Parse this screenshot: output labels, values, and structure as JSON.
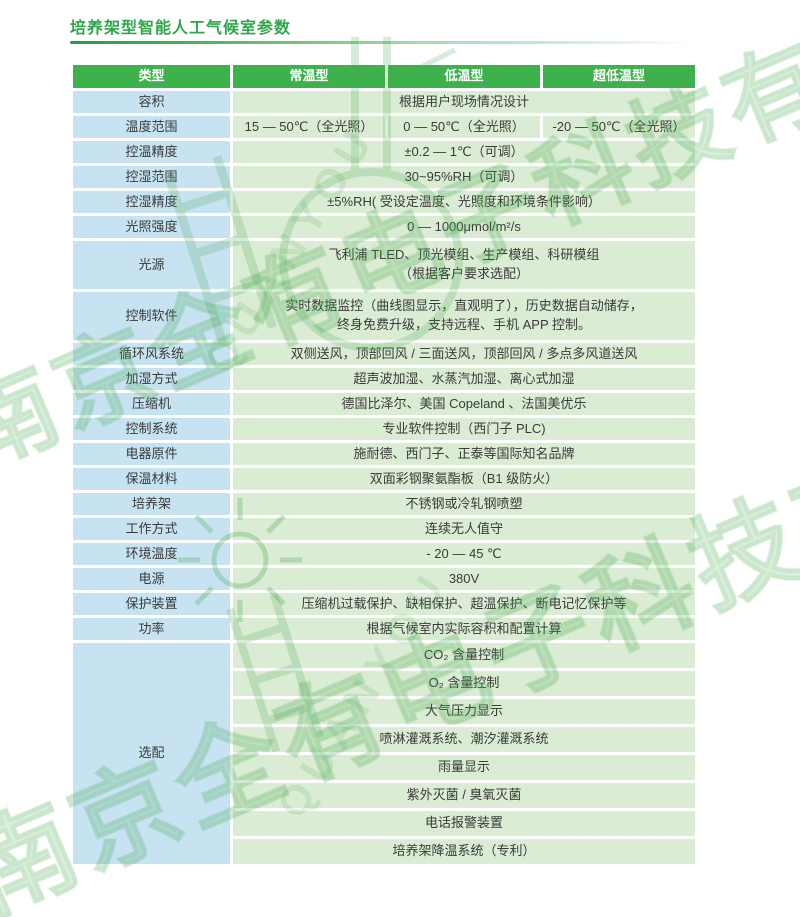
{
  "page": {
    "title": "培养架型智能人工气候室参数"
  },
  "colors": {
    "title_green": "#2fa64a",
    "header_green": "#3db24c",
    "label_blue": "#c7e3f2",
    "value_green": "#daecd3",
    "divider_gradient_start": "#1f9e48",
    "divider_gradient_end": "#bfe4ea"
  },
  "watermark": {
    "company_cn": "南京全有电子科技有限公司",
    "company_en": "QUANYOU"
  },
  "table": {
    "header": [
      "类型",
      "常温型",
      "低温型",
      "超低温型"
    ],
    "rows": [
      {
        "label": "容积",
        "cells": [
          "根据用户现场情况设计"
        ],
        "spans": [
          3
        ]
      },
      {
        "label": "温度范围",
        "cells": [
          "15 — 50℃（全光照）",
          "0 — 50℃（全光照）",
          "-20 — 50℃（全光照）"
        ],
        "spans": [
          1,
          1,
          1
        ]
      },
      {
        "label": "控温精度",
        "cells": [
          "±0.2 — 1℃（可调）"
        ],
        "spans": [
          3
        ]
      },
      {
        "label": "控湿范围",
        "cells": [
          "30~95%RH（可调）"
        ],
        "spans": [
          3
        ]
      },
      {
        "label": "控湿精度",
        "cells": [
          "±5%RH( 受设定温度、光照度和环境条件影响）"
        ],
        "spans": [
          3
        ]
      },
      {
        "label": "光照强度",
        "cells": [
          "0 — 1000μmol/m²/s"
        ],
        "spans": [
          3
        ]
      },
      {
        "label": "光源",
        "cells": [
          "飞利浦 TLED、顶光模组、生产模组、科研模组\n（根据客户要求选配）"
        ],
        "spans": [
          3
        ]
      },
      {
        "label": "控制软件",
        "cells": [
          "实时数据监控（曲线图显示，直观明了），历史数据自动储存，\n终身免费升级，支持远程、手机 APP 控制。"
        ],
        "spans": [
          3
        ]
      },
      {
        "label": "循环风系统",
        "cells": [
          "双侧送风，顶部回风 / 三面送风，顶部回风 / 多点多风道送风"
        ],
        "spans": [
          3
        ]
      },
      {
        "label": "加湿方式",
        "cells": [
          "超声波加湿、水蒸汽加湿、离心式加湿"
        ],
        "spans": [
          3
        ]
      },
      {
        "label": "压缩机",
        "cells": [
          "德国比泽尔、美国 Copeland 、法国美优乐"
        ],
        "spans": [
          3
        ]
      },
      {
        "label": "控制系统",
        "cells": [
          "专业软件控制（西门子 PLC)"
        ],
        "spans": [
          3
        ]
      },
      {
        "label": "电器原件",
        "cells": [
          "施耐德、西门子、正泰等国际知名品牌"
        ],
        "spans": [
          3
        ]
      },
      {
        "label": "保温材料",
        "cells": [
          "双面彩钢聚氨酯板（B1 级防火）"
        ],
        "spans": [
          3
        ]
      },
      {
        "label": "培养架",
        "cells": [
          "不锈钢或冷轧钢喷塑"
        ],
        "spans": [
          3
        ]
      },
      {
        "label": "工作方式",
        "cells": [
          "连续无人值守"
        ],
        "spans": [
          3
        ]
      },
      {
        "label": "环境温度",
        "cells": [
          "- 20 — 45 ℃"
        ],
        "spans": [
          3
        ]
      },
      {
        "label": "电源",
        "cells": [
          "380V"
        ],
        "spans": [
          3
        ]
      },
      {
        "label": "保护装置",
        "cells": [
          "压缩机过载保护、缺相保护、超温保护、断电记忆保护等"
        ],
        "spans": [
          3
        ]
      },
      {
        "label": "功率",
        "cells": [
          "根据气候室内实际容积和配置计算"
        ],
        "spans": [
          3
        ]
      },
      {
        "label": "选配",
        "labelRowspan": 8,
        "cells": [
          "CO₂ 含量控制"
        ],
        "spans": [
          3
        ]
      },
      {
        "label": null,
        "cells": [
          "O₂ 含量控制"
        ],
        "spans": [
          3
        ]
      },
      {
        "label": null,
        "cells": [
          "大气压力显示"
        ],
        "spans": [
          3
        ]
      },
      {
        "label": null,
        "cells": [
          "喷淋灌溉系统、潮汐灌溉系统"
        ],
        "spans": [
          3
        ]
      },
      {
        "label": null,
        "cells": [
          "雨量显示"
        ],
        "spans": [
          3
        ]
      },
      {
        "label": null,
        "cells": [
          "紫外灭菌 / 臭氧灭菌"
        ],
        "spans": [
          3
        ]
      },
      {
        "label": null,
        "cells": [
          "电话报警装置"
        ],
        "spans": [
          3
        ]
      },
      {
        "label": null,
        "cells": [
          "培养架降温系统（专利）"
        ],
        "spans": [
          3
        ]
      }
    ]
  }
}
